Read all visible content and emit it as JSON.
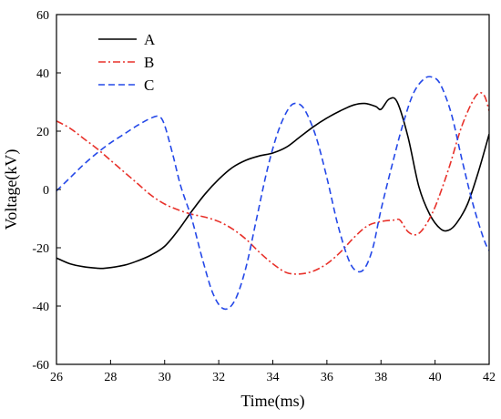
{
  "chart_data": {
    "type": "line",
    "title": "",
    "xlabel": "Time(ms)",
    "ylabel": "Voltage(kV)",
    "xlim": [
      26,
      42
    ],
    "ylim": [
      -60,
      60
    ],
    "xticks": [
      26,
      28,
      30,
      32,
      34,
      36,
      38,
      40,
      42
    ],
    "yticks": [
      -60,
      -40,
      -20,
      0,
      20,
      40,
      60
    ],
    "grid": false,
    "legend_position": "top-left",
    "series": [
      {
        "name": "A",
        "color": "#000000",
        "dash": "solid",
        "x": [
          26,
          26.5,
          27,
          27.5,
          27.8,
          28.5,
          29,
          29.5,
          30,
          30.5,
          31,
          31.5,
          32,
          32.5,
          33,
          33.5,
          34,
          34.5,
          35,
          35.5,
          36,
          36.5,
          37,
          37.4,
          37.8,
          38,
          38.3,
          38.6,
          39,
          39.4,
          39.8,
          40.2,
          40.5,
          40.8,
          41.2,
          41.6,
          42
        ],
        "y": [
          -23.5,
          -25.5,
          -26.5,
          -27,
          -27,
          -26,
          -24.5,
          -22.5,
          -19.5,
          -14,
          -7.5,
          -1.5,
          3.5,
          7.5,
          10,
          11.5,
          12.5,
          14.5,
          18,
          21.5,
          24.5,
          27,
          29,
          29.5,
          28.5,
          27.5,
          31,
          30,
          18,
          1,
          -8.5,
          -13.5,
          -14,
          -11.5,
          -5,
          6,
          19
        ]
      },
      {
        "name": "B",
        "color": "#e8312a",
        "dash": "dashdot",
        "x": [
          26,
          26.5,
          27,
          27.5,
          28,
          28.5,
          29,
          29.5,
          30,
          30.5,
          31,
          31.5,
          32,
          32.5,
          33,
          33.5,
          34,
          34.5,
          35,
          35.5,
          36,
          36.5,
          37,
          37.5,
          38,
          38.5,
          38.7,
          39,
          39.3,
          39.6,
          40,
          40.5,
          41,
          41.5,
          41.8,
          42
        ],
        "y": [
          23.5,
          21,
          17.5,
          14,
          10,
          6,
          2,
          -2,
          -5,
          -7,
          -8.5,
          -9.5,
          -11,
          -13.5,
          -17,
          -21.5,
          -25.5,
          -28.5,
          -29,
          -28,
          -25.5,
          -21.5,
          -16.5,
          -12.5,
          -11,
          -10.5,
          -10.5,
          -14.5,
          -15.5,
          -13,
          -6,
          7,
          22,
          32,
          32.5,
          27
        ]
      },
      {
        "name": "C",
        "color": "#2448e8",
        "dash": "dashed",
        "x": [
          26,
          26.5,
          27,
          27.5,
          28,
          28.5,
          29,
          29.5,
          29.8,
          30,
          30.3,
          30.6,
          31,
          31.4,
          31.8,
          32.2,
          32.6,
          33,
          33.4,
          33.8,
          34.2,
          34.6,
          34.9,
          35.2,
          35.6,
          36,
          36.4,
          36.8,
          37.1,
          37.4,
          37.7,
          38,
          38.4,
          38.8,
          39.2,
          39.6,
          39.9,
          40.2,
          40.6,
          41,
          41.4,
          41.8,
          42
        ],
        "y": [
          -0.5,
          4,
          8.5,
          12.5,
          16,
          19,
          22,
          24.5,
          25,
          22,
          12,
          1,
          -10,
          -24,
          -36,
          -41,
          -38,
          -27,
          -10,
          7,
          20,
          28,
          29.5,
          27,
          18,
          4,
          -12,
          -24,
          -28,
          -27,
          -20,
          -7,
          8,
          22,
          33,
          38,
          38.5,
          36,
          26,
          10,
          -5,
          -17,
          -21
        ]
      }
    ]
  }
}
